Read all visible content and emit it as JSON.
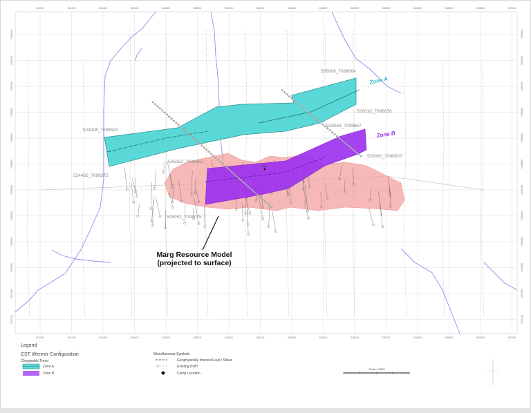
{
  "map": {
    "easting_ticks": [
      "524000",
      "524200",
      "524400",
      "524600",
      "524800",
      "525000",
      "525200",
      "525400",
      "525600",
      "525800",
      "526000",
      "526200",
      "526400",
      "526600",
      "526800",
      "527000"
    ],
    "northing_ticks": [
      "7099600",
      "7099400",
      "7099200",
      "7099000",
      "7098800",
      "7098600",
      "7098400",
      "7098200",
      "7098000",
      "7097800",
      "7097600",
      "7097400"
    ],
    "point_labels": {
      "p1": "524408_7098593",
      "p2": "524465_7098372",
      "p3": "525052_7098352",
      "p4": "525052_7098075",
      "p5": "526008_7099064",
      "p6": "526010_7098858",
      "p7": "526063_7098867",
      "p8": "526080_7098507"
    },
    "zone_a_label": "Zone A",
    "zone_b_label": "Zone B",
    "camp_label": "Camp",
    "annotation_line1": "Marg Resource Model",
    "annotation_line2": "(projected to surface)",
    "colors": {
      "zone_a": "#5ad8d8",
      "zone_b": "#9b2ff0",
      "resource": "#f4a0a0",
      "river": "#8c8cf0",
      "zone_a_text": "#2bbccc",
      "zone_b_text": "#9b2ff0"
    }
  },
  "legend": {
    "title": "Legend",
    "config_title": "CST Wenner Configuration",
    "subtitle": "Chargeable Trend",
    "zone_a": "Zone A",
    "zone_b": "Zone B",
    "misc_title": "Miscellaneous Symbols",
    "fault": "Geophysically Inferred Fault / Shear",
    "ddh": "Existing DDH",
    "camp": "Camp Location",
    "scale": "Scale 1:5000"
  }
}
